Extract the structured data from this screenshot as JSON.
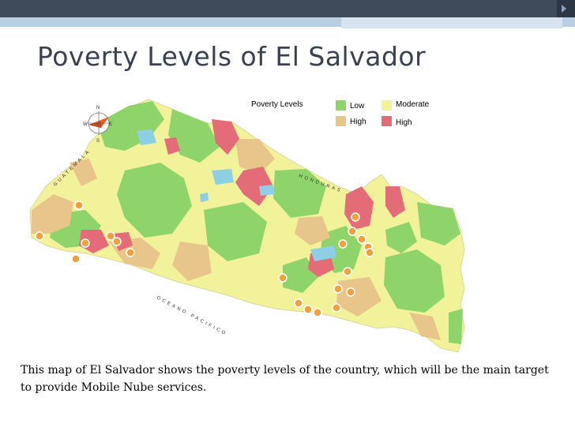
{
  "slide": {
    "title": "Poverty Levels of El Salvador",
    "caption": "This map of El Salvador shows the poverty levels of the country, which will be the main target to provide Mobile Nube services."
  },
  "legend": {
    "title": "Poverty Levels",
    "items": [
      {
        "label": "Low",
        "color": "#8fd46a"
      },
      {
        "label": "Moderate",
        "color": "#f2f29a"
      },
      {
        "label": "High",
        "color": "#e8c58a"
      },
      {
        "label": "High",
        "color": "#e46b78"
      }
    ]
  },
  "compass": {
    "n": "N",
    "s": "S",
    "e": "E",
    "w": "W"
  },
  "map_labels": {
    "guatemala": "GUATEMALA",
    "honduras": "HONDURAS",
    "ocean": "OCEANO PACIFICO"
  },
  "colors": {
    "low": "#8fd46a",
    "moderate": "#f2f29a",
    "high": "#e8c58a",
    "very_high": "#e46b78",
    "water": "#8fcfe6",
    "marker": "#f0a040"
  },
  "marker_count": 21
}
